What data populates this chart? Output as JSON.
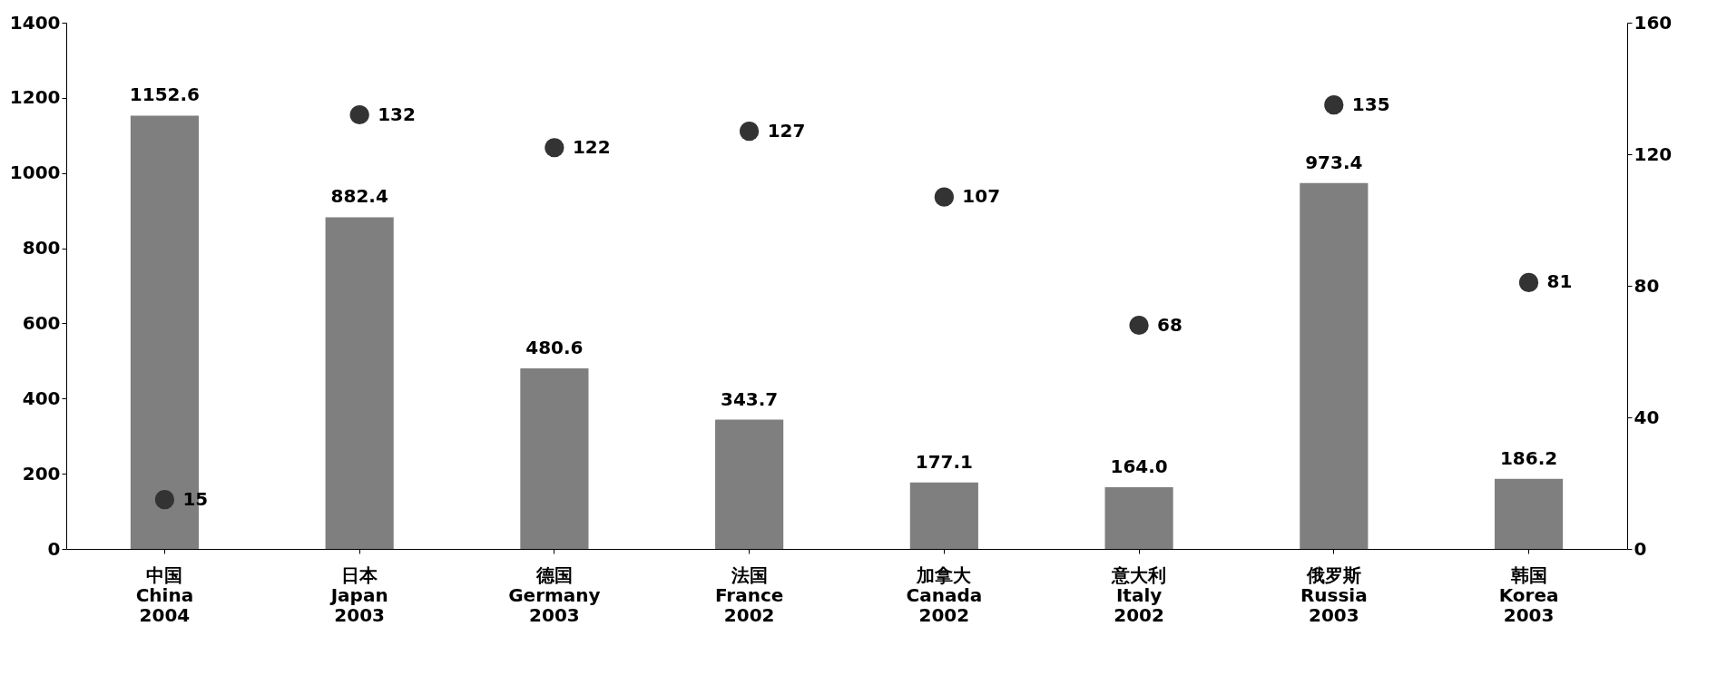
{
  "chart_data": {
    "type": "bar",
    "categories": [
      "中国\nChina\n2004",
      "日本\nJapan\n2003",
      "德国\nGermany\n2003",
      "法国\nFrance\n2002",
      "加拿大\nCanada\n2002",
      "意大利\nItaly\n2002",
      "俄罗斯\nRussia\n2003",
      "韩国\nKorea\n2003"
    ],
    "series": [
      {
        "type": "bar",
        "color": "#7f7f7f",
        "values": [
          1152.6,
          882.4,
          480.6,
          343.7,
          177.1,
          164.0,
          973.4,
          186.2
        ],
        "value_labels": [
          "1152.6",
          "882.4",
          "480.6",
          "343.7",
          "177.1",
          "164.0",
          "973.4",
          "186.2"
        ]
      },
      {
        "type": "scatter",
        "axis": "y2",
        "color": "#333333",
        "marker": "circle",
        "values": [
          15,
          132,
          122,
          127,
          107,
          68,
          135,
          81
        ],
        "value_labels": [
          "15",
          "132",
          "122",
          "127",
          "107",
          "68",
          "135",
          "81"
        ]
      }
    ],
    "ylim": [
      0,
      1400
    ],
    "yticks": [
      0,
      200,
      400,
      600,
      800,
      1000,
      1200,
      1400
    ],
    "y2lim": [
      0,
      160
    ],
    "y2ticks": [
      0,
      40,
      80,
      120,
      160
    ],
    "grid": false
  }
}
